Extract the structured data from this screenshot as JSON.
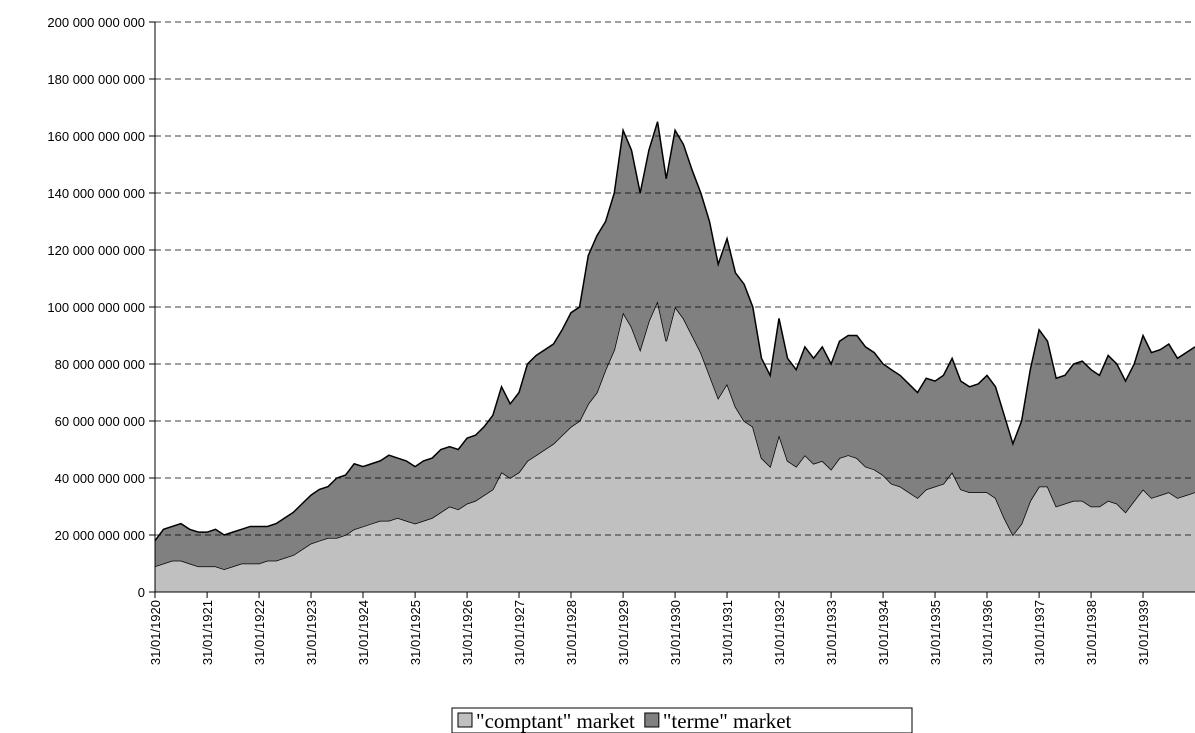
{
  "chart_data": {
    "type": "area",
    "stacked": true,
    "grid": true,
    "x": [
      "31/01/1920",
      "31/03/1920",
      "31/05/1920",
      "31/07/1920",
      "30/09/1920",
      "30/11/1920",
      "31/01/1921",
      "31/03/1921",
      "31/05/1921",
      "31/07/1921",
      "30/09/1921",
      "30/11/1921",
      "31/01/1922",
      "31/03/1922",
      "31/05/1922",
      "31/07/1922",
      "30/09/1922",
      "30/11/1922",
      "31/01/1923",
      "31/03/1923",
      "31/05/1923",
      "31/07/1923",
      "30/09/1923",
      "30/11/1923",
      "31/01/1924",
      "31/03/1924",
      "31/05/1924",
      "31/07/1924",
      "30/09/1924",
      "30/11/1924",
      "31/01/1925",
      "31/03/1925",
      "31/05/1925",
      "31/07/1925",
      "30/09/1925",
      "30/11/1925",
      "31/01/1926",
      "31/03/1926",
      "31/05/1926",
      "31/07/1926",
      "30/09/1926",
      "30/11/1926",
      "31/01/1927",
      "31/03/1927",
      "31/05/1927",
      "31/07/1927",
      "30/09/1927",
      "30/11/1927",
      "31/01/1928",
      "31/03/1928",
      "31/05/1928",
      "31/07/1928",
      "30/09/1928",
      "30/11/1928",
      "31/01/1929",
      "31/03/1929",
      "31/05/1929",
      "31/07/1929",
      "30/09/1929",
      "30/11/1929",
      "31/01/1930",
      "31/03/1930",
      "31/05/1930",
      "31/07/1930",
      "30/09/1930",
      "30/11/1930",
      "31/01/1931",
      "31/03/1931",
      "31/05/1931",
      "31/07/1931",
      "30/09/1931",
      "30/11/1931",
      "31/01/1932",
      "31/03/1932",
      "31/05/1932",
      "31/07/1932",
      "30/09/1932",
      "30/11/1932",
      "31/01/1933",
      "31/03/1933",
      "31/05/1933",
      "31/07/1933",
      "30/09/1933",
      "30/11/1933",
      "31/01/1934",
      "31/03/1934",
      "31/05/1934",
      "31/07/1934",
      "30/09/1934",
      "30/11/1934",
      "31/01/1935",
      "31/03/1935",
      "31/05/1935",
      "31/07/1935",
      "30/09/1935",
      "30/11/1935",
      "31/01/1936",
      "31/03/1936",
      "31/05/1936",
      "31/07/1936",
      "30/09/1936",
      "30/11/1936",
      "31/01/1937",
      "31/03/1937",
      "31/05/1937",
      "31/07/1937",
      "30/09/1937",
      "30/11/1937",
      "31/01/1938",
      "31/03/1938",
      "31/05/1938",
      "31/07/1938",
      "30/09/1938",
      "30/11/1938",
      "31/01/1939",
      "31/03/1939",
      "31/05/1939",
      "31/07/1939",
      "30/09/1939",
      "30/11/1939",
      "31/01/1940"
    ],
    "series": [
      {
        "name": "\"comptant\" market",
        "color": "#c0c0c0",
        "values": [
          9000000000,
          10000000000,
          11000000000,
          11000000000,
          10000000000,
          9000000000,
          9000000000,
          9000000000,
          8000000000,
          9000000000,
          10000000000,
          10000000000,
          10000000000,
          11000000000,
          11000000000,
          12000000000,
          13000000000,
          15000000000,
          17000000000,
          18000000000,
          19000000000,
          19000000000,
          20000000000,
          22000000000,
          23000000000,
          24000000000,
          25000000000,
          25000000000,
          26000000000,
          25000000000,
          24000000000,
          25000000000,
          26000000000,
          28000000000,
          30000000000,
          29000000000,
          31000000000,
          32000000000,
          34000000000,
          36000000000,
          42000000000,
          40000000000,
          42000000000,
          46000000000,
          48000000000,
          50000000000,
          52000000000,
          55000000000,
          58000000000,
          60000000000,
          66000000000,
          70000000000,
          78000000000,
          85000000000,
          98000000000,
          93000000000,
          85000000000,
          95000000000,
          102000000000,
          88000000000,
          100000000000,
          96000000000,
          90000000000,
          84000000000,
          76000000000,
          68000000000,
          73000000000,
          65000000000,
          60000000000,
          58000000000,
          47000000000,
          44000000000,
          55000000000,
          46000000000,
          44000000000,
          48000000000,
          45000000000,
          46000000000,
          43000000000,
          47000000000,
          48000000000,
          47000000000,
          44000000000,
          43000000000,
          41000000000,
          38000000000,
          37000000000,
          35000000000,
          33000000000,
          36000000000,
          37000000000,
          38000000000,
          42000000000,
          36000000000,
          35000000000,
          35000000000,
          35000000000,
          33000000000,
          26000000000,
          20000000000,
          24000000000,
          32000000000,
          37000000000,
          37000000000,
          30000000000,
          31000000000,
          32000000000,
          32000000000,
          30000000000,
          30000000000,
          32000000000,
          31000000000,
          28000000000,
          32000000000,
          36000000000,
          33000000000,
          34000000000,
          35000000000,
          33000000000,
          34000000000,
          35000000000
        ]
      },
      {
        "name": "\"terme\" market",
        "color": "#808080",
        "values": [
          9000000000,
          12000000000,
          12000000000,
          13000000000,
          12000000000,
          12000000000,
          12000000000,
          13000000000,
          12000000000,
          12000000000,
          12000000000,
          13000000000,
          13000000000,
          12000000000,
          13000000000,
          14000000000,
          15000000000,
          16000000000,
          17000000000,
          18000000000,
          18000000000,
          21000000000,
          21000000000,
          23000000000,
          21000000000,
          21000000000,
          21000000000,
          23000000000,
          21000000000,
          21000000000,
          20000000000,
          21000000000,
          21000000000,
          22000000000,
          21000000000,
          21000000000,
          23000000000,
          23000000000,
          24000000000,
          26000000000,
          30000000000,
          26000000000,
          28000000000,
          34000000000,
          35000000000,
          35000000000,
          35000000000,
          37000000000,
          40000000000,
          40000000000,
          52000000000,
          55000000000,
          52000000000,
          55000000000,
          64000000000,
          62000000000,
          55000000000,
          60000000000,
          63000000000,
          57000000000,
          62000000000,
          61000000000,
          58000000000,
          56000000000,
          54000000000,
          47000000000,
          51000000000,
          47000000000,
          48000000000,
          42000000000,
          35000000000,
          32000000000,
          41000000000,
          36000000000,
          34000000000,
          38000000000,
          37000000000,
          40000000000,
          37000000000,
          41000000000,
          42000000000,
          43000000000,
          42000000000,
          41000000000,
          39000000000,
          40000000000,
          39000000000,
          38000000000,
          37000000000,
          39000000000,
          37000000000,
          38000000000,
          40000000000,
          38000000000,
          37000000000,
          38000000000,
          41000000000,
          39000000000,
          36000000000,
          32000000000,
          36000000000,
          46000000000,
          55000000000,
          51000000000,
          45000000000,
          45000000000,
          48000000000,
          49000000000,
          48000000000,
          46000000000,
          51000000000,
          49000000000,
          46000000000,
          48000000000,
          54000000000,
          51000000000,
          51000000000,
          52000000000,
          49000000000,
          50000000000,
          51000000000
        ]
      }
    ],
    "xlim": [
      "31/01/1920",
      "31/01/1940"
    ],
    "xticks": [
      "31/01/1920",
      "31/01/1921",
      "31/01/1922",
      "31/01/1923",
      "31/01/1924",
      "31/01/1925",
      "31/01/1926",
      "31/01/1927",
      "31/01/1928",
      "31/01/1929",
      "31/01/1930",
      "31/01/1931",
      "31/01/1932",
      "31/01/1933",
      "31/01/1934",
      "31/01/1935",
      "31/01/1936",
      "31/01/1937",
      "31/01/1938",
      "31/01/1939"
    ],
    "ylim": [
      0,
      200000000000
    ],
    "yticks": [
      0,
      {
        "value": 20000000000,
        "label": "20 000 000 000"
      },
      {
        "value": 40000000000,
        "label": "40 000 000 000"
      },
      {
        "value": 60000000000,
        "label": "60 000 000 000"
      },
      {
        "value": 80000000000,
        "label": "80 000 000 000"
      },
      {
        "value": 100000000000,
        "label": "100 000 000 000"
      },
      {
        "value": 120000000000,
        "label": "120 000 000 000"
      },
      {
        "value": 140000000000,
        "label": "140 000 000 000"
      },
      {
        "value": 160000000000,
        "label": "160 000 000 000"
      },
      {
        "value": 180000000000,
        "label": "180 000 000 000"
      },
      {
        "value": 200000000000,
        "label": "200 000 000 000"
      }
    ],
    "legend": "bottom"
  }
}
